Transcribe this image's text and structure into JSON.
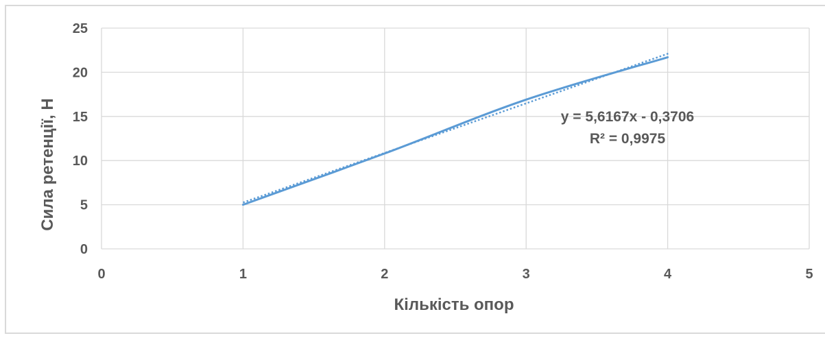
{
  "chart_data": {
    "type": "line",
    "xlabel": "Кількість опор",
    "ylabel": "Сила ретенції, Н",
    "xlim": [
      0,
      5
    ],
    "ylim": [
      0,
      25
    ],
    "x_ticks": [
      "0",
      "1",
      "2",
      "3",
      "4",
      "5"
    ],
    "y_ticks": [
      "0",
      "5",
      "10",
      "15",
      "20",
      "25"
    ],
    "grid": true,
    "legend": "none",
    "series": [
      {
        "x": [
          1,
          2,
          3,
          4
        ],
        "y": [
          5.0,
          10.8,
          16.9,
          21.7
        ],
        "color": "#5B9BD5",
        "style": "solid-smooth"
      }
    ],
    "trendline": {
      "type": "linear",
      "slope": 5.6167,
      "intercept": -0.3706,
      "x_range": [
        1,
        4
      ],
      "color": "#5B9BD5",
      "style": "dotted"
    },
    "annotations": [
      "y = 5,6167x - 0,3706",
      "R² = 0,9975"
    ],
    "colors": {
      "grid": "#D9D9D9",
      "text": "#595959",
      "border": "#D9D9D9"
    }
  }
}
